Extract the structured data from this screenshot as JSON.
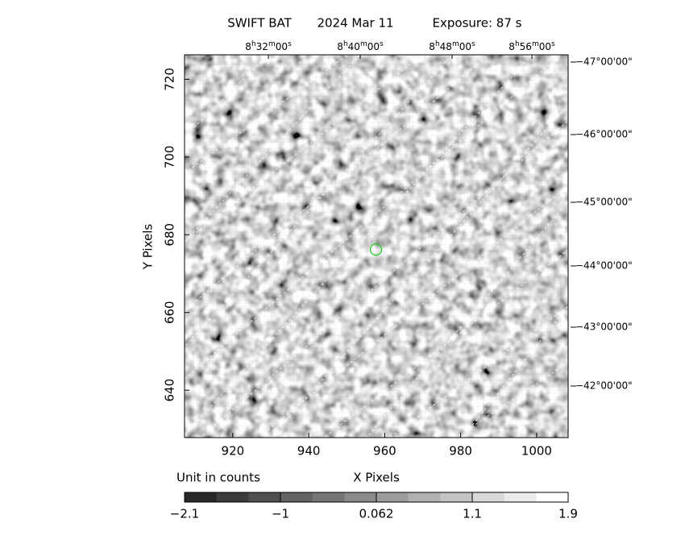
{
  "chart_data": {
    "type": "image",
    "title_parts": [
      "SWIFT BAT",
      "2024 Mar 11",
      "Exposure: 87 s"
    ],
    "x_label": "X Pixels",
    "y_label": "Y Pixels",
    "unit_label": "Unit in counts",
    "xlim": [
      907.3,
      1008.3
    ],
    "xticks": [
      920,
      940,
      960,
      980,
      1000
    ],
    "ylim": [
      627.8,
      726.3
    ],
    "yticks": [
      640,
      660,
      680,
      700,
      720
    ],
    "ra_labels": [
      "8h32m00s",
      "8h40m00s",
      "8h48m00s",
      "8h56m00s"
    ],
    "dec_labels": [
      "−47°00'00\"",
      "−46°00'00\"",
      "−45°00'00\"",
      "−44°00'00\"",
      "−43°00'00\"",
      "−42°00'00\""
    ],
    "source": {
      "x": 957.7,
      "y": 676.2,
      "color": "#22cc22"
    },
    "colorbar_ticks": [
      {
        "value": -2.1,
        "label": "−2.1"
      },
      {
        "value": -1,
        "label": "−1"
      },
      0.062,
      1.1,
      1.9
    ]
  }
}
